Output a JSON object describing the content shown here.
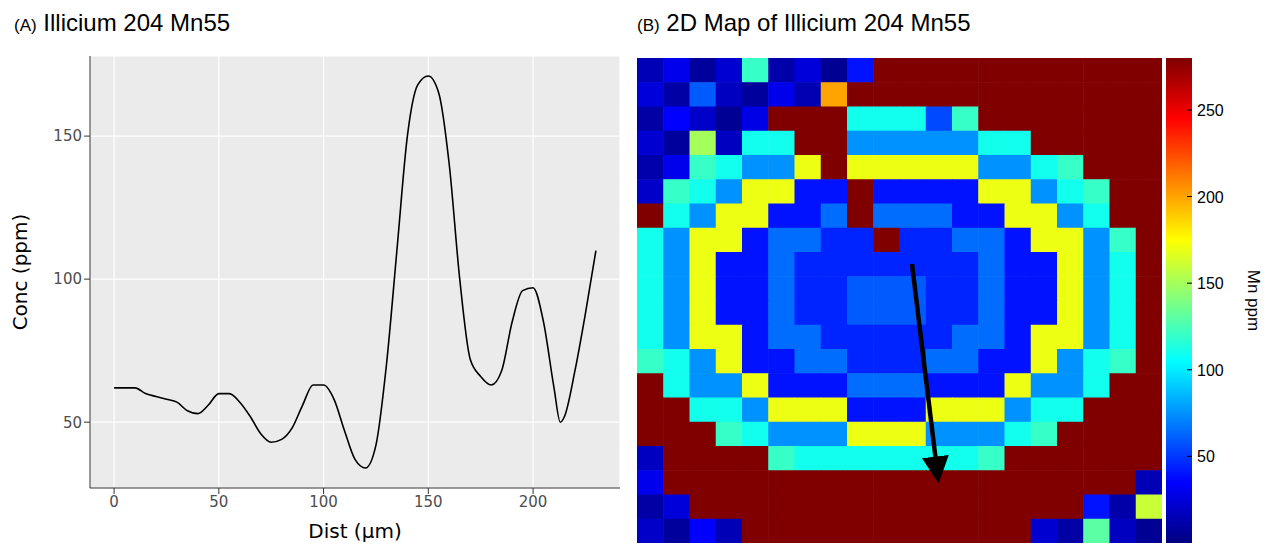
{
  "chart_data": [
    {
      "type": "line",
      "panel_label": "(A)",
      "title": "Illicium 204 Mn55",
      "x_label": "Dist (µm)",
      "y_label": "Conc (ppm)",
      "x": [
        0,
        5,
        10,
        15,
        20,
        25,
        30,
        35,
        40,
        45,
        50,
        55,
        60,
        65,
        70,
        75,
        80,
        85,
        90,
        95,
        100,
        105,
        110,
        115,
        120,
        125,
        130,
        135,
        140,
        145,
        150,
        155,
        160,
        165,
        170,
        175,
        180,
        185,
        190,
        195,
        200,
        205,
        210,
        213,
        215,
        220,
        225,
        230
      ],
      "values": [
        62,
        62,
        62,
        60,
        59,
        58,
        57,
        54,
        53,
        56,
        60,
        60,
        57,
        52,
        46,
        43,
        44,
        48,
        56,
        63,
        63,
        58,
        47,
        37,
        34,
        42,
        70,
        110,
        150,
        168,
        171,
        165,
        140,
        100,
        72,
        66,
        63,
        68,
        85,
        96,
        97,
        85,
        62,
        50,
        52,
        68,
        88,
        110
      ],
      "color": "#000000",
      "xlim": [
        -11.5,
        241.5
      ],
      "xticks": [
        0,
        50,
        100,
        150,
        200
      ],
      "ylim": [
        27,
        178
      ],
      "yticks": [
        50,
        100,
        150
      ],
      "grid": true
    },
    {
      "type": "heatmap",
      "panel_label": "(B)",
      "title": "2D Map of Illicium 204 Mn55",
      "colorbar_label": "Mn ppm",
      "colorbar_range": [
        0,
        280
      ],
      "colorbar_ticks": [
        50,
        100,
        150,
        200,
        250
      ],
      "tick_labels": false,
      "cells": [
        [
          15,
          30,
          8,
          22,
          120,
          12,
          25,
          5,
          40,
          280,
          280,
          280,
          280,
          280,
          280,
          280,
          280,
          280,
          280,
          280
        ],
        [
          25,
          10,
          60,
          18,
          8,
          30,
          14,
          200,
          280,
          280,
          280,
          280,
          280,
          280,
          280,
          280,
          280,
          280,
          280,
          280
        ],
        [
          10,
          35,
          20,
          6,
          28,
          280,
          280,
          280,
          110,
          110,
          110,
          55,
          120,
          280,
          280,
          280,
          280,
          280,
          280,
          280
        ],
        [
          22,
          8,
          150,
          18,
          110,
          110,
          280,
          280,
          75,
          75,
          75,
          75,
          75,
          110,
          110,
          280,
          280,
          280,
          280,
          280
        ],
        [
          12,
          30,
          120,
          110,
          75,
          75,
          170,
          280,
          170,
          170,
          170,
          170,
          170,
          75,
          75,
          110,
          120,
          280,
          280,
          280
        ],
        [
          20,
          120,
          110,
          75,
          170,
          170,
          40,
          40,
          280,
          40,
          40,
          40,
          40,
          170,
          170,
          75,
          110,
          120,
          280,
          280
        ],
        [
          280,
          110,
          75,
          170,
          170,
          40,
          40,
          65,
          280,
          65,
          65,
          65,
          40,
          40,
          170,
          170,
          75,
          110,
          280,
          280
        ],
        [
          110,
          75,
          170,
          170,
          40,
          65,
          65,
          45,
          45,
          280,
          45,
          45,
          65,
          65,
          40,
          170,
          170,
          75,
          120,
          280
        ],
        [
          110,
          75,
          170,
          40,
          40,
          65,
          45,
          45,
          45,
          45,
          45,
          45,
          45,
          65,
          40,
          40,
          170,
          75,
          110,
          280
        ],
        [
          110,
          75,
          170,
          40,
          40,
          65,
          45,
          45,
          60,
          60,
          60,
          45,
          45,
          65,
          40,
          40,
          170,
          75,
          110,
          280
        ],
        [
          110,
          75,
          170,
          40,
          40,
          65,
          45,
          45,
          60,
          60,
          60,
          45,
          45,
          65,
          40,
          40,
          170,
          75,
          110,
          280
        ],
        [
          110,
          75,
          170,
          170,
          40,
          65,
          65,
          45,
          45,
          45,
          45,
          45,
          65,
          65,
          40,
          170,
          170,
          75,
          110,
          280
        ],
        [
          120,
          110,
          75,
          170,
          40,
          40,
          65,
          65,
          45,
          45,
          45,
          65,
          65,
          40,
          40,
          170,
          75,
          110,
          120,
          280
        ],
        [
          280,
          110,
          75,
          75,
          170,
          40,
          40,
          40,
          65,
          65,
          65,
          40,
          40,
          40,
          170,
          75,
          75,
          110,
          280,
          280
        ],
        [
          280,
          280,
          110,
          110,
          75,
          170,
          170,
          170,
          40,
          40,
          40,
          170,
          170,
          170,
          75,
          110,
          110,
          280,
          280,
          280
        ],
        [
          280,
          280,
          280,
          120,
          110,
          75,
          75,
          75,
          170,
          170,
          170,
          75,
          75,
          75,
          110,
          120,
          280,
          280,
          280,
          280
        ],
        [
          18,
          280,
          280,
          280,
          280,
          120,
          110,
          110,
          110,
          110,
          110,
          110,
          110,
          120,
          280,
          280,
          280,
          280,
          280,
          280
        ],
        [
          30,
          280,
          280,
          280,
          280,
          280,
          280,
          280,
          280,
          280,
          280,
          280,
          280,
          280,
          280,
          280,
          280,
          280,
          280,
          15
        ],
        [
          10,
          25,
          280,
          280,
          280,
          280,
          280,
          280,
          280,
          280,
          280,
          280,
          280,
          280,
          280,
          280,
          280,
          40,
          12,
          160
        ],
        [
          20,
          8,
          35,
          15,
          280,
          280,
          280,
          280,
          280,
          280,
          280,
          280,
          280,
          280,
          280,
          22,
          10,
          130,
          18,
          6
        ]
      ]
    }
  ]
}
